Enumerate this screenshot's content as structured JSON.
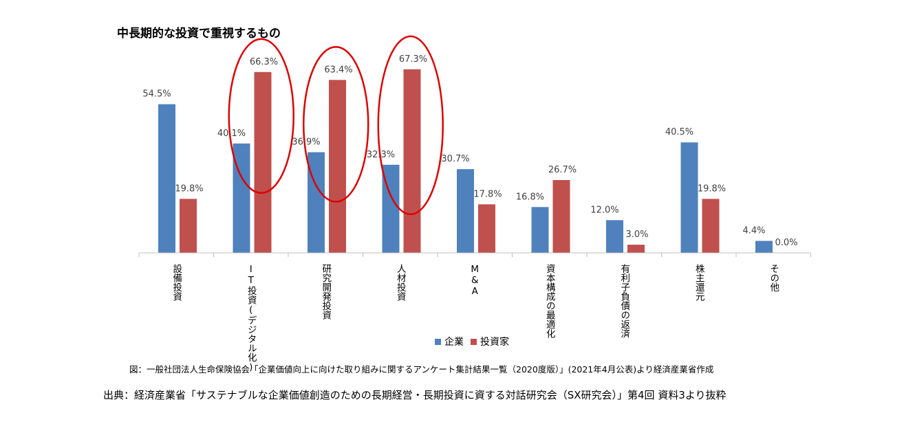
{
  "chart_data": {
    "type": "bar",
    "title": "中長期的な投資で重視するもの",
    "categories": [
      "設備投資",
      "IT投資(デジタル化)",
      "研究開発投資",
      "人材投資",
      "M&A",
      "資本構成の最適化",
      "有利子負債の返済",
      "株主還元",
      "その他"
    ],
    "series": [
      {
        "name": "企業",
        "color": "#4f81bd",
        "values": [
          54.5,
          40.1,
          36.9,
          32.3,
          30.7,
          16.8,
          12.0,
          40.5,
          4.4
        ]
      },
      {
        "name": "投資家",
        "color": "#c0504d",
        "values": [
          19.8,
          66.3,
          63.4,
          67.3,
          17.8,
          26.7,
          3.0,
          19.8,
          0.0
        ]
      }
    ],
    "value_labels": [
      [
        "54.5%",
        "40.1%",
        "36.9%",
        "32.3%",
        "30.7%",
        "16.8%",
        "12.0%",
        "40.5%",
        "4.4%"
      ],
      [
        "19.8%",
        "66.3%",
        "63.4%",
        "67.3%",
        "17.8%",
        "26.7%",
        "3.0%",
        "19.8%",
        "0.0%"
      ]
    ],
    "highlighted_categories": [
      "IT投資(デジタル化)",
      "研究開発投資",
      "人材投資"
    ],
    "highlight_color": "#e00000",
    "legend_placement": "bottom-center",
    "grid": false
  },
  "caption": "図：一般社団法人生命保険協会「企業価値向上に向けた取り組みに関するアンケート集計結果一覧（2020度版）」(2021年4月公表)より経済産業省作成",
  "source": "出典：経済産業省「サステナブルな企業価値創造のための長期経営・長期投資に資する対話研究会（SX研究会）」第4回 資料3より抜粋"
}
